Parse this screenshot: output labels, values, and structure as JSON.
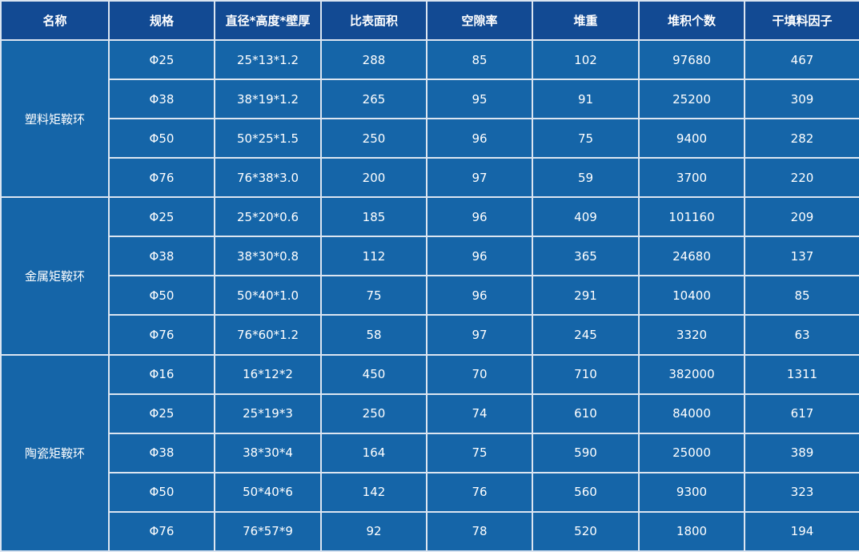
{
  "colors": {
    "header_bg": "#124a93",
    "body_bg": "#1565a8",
    "border": "#dbe5f1",
    "text": "#ffffff"
  },
  "headers": [
    "名称",
    "规格",
    "直径*高度*壁厚",
    "比表面积",
    "空隙率",
    "堆重",
    "堆积个数",
    "干填料因子"
  ],
  "groups": [
    {
      "name": "塑料矩鞍环",
      "rows": [
        [
          "Φ25",
          "25*13*1.2",
          "288",
          "85",
          "102",
          "97680",
          "467"
        ],
        [
          "Φ38",
          "38*19*1.2",
          "265",
          "95",
          "91",
          "25200",
          "309"
        ],
        [
          "Φ50",
          "50*25*1.5",
          "250",
          "96",
          "75",
          "9400",
          "282"
        ],
        [
          "Φ76",
          "76*38*3.0",
          "200",
          "97",
          "59",
          "3700",
          "220"
        ]
      ]
    },
    {
      "name": "金属矩鞍环",
      "rows": [
        [
          "Φ25",
          "25*20*0.6",
          "185",
          "96",
          "409",
          "101160",
          "209"
        ],
        [
          "Φ38",
          "38*30*0.8",
          "112",
          "96",
          "365",
          "24680",
          "137"
        ],
        [
          "Φ50",
          "50*40*1.0",
          "75",
          "96",
          "291",
          "10400",
          "85"
        ],
        [
          "Φ76",
          "76*60*1.2",
          "58",
          "97",
          "245",
          "3320",
          "63"
        ]
      ]
    },
    {
      "name": "陶瓷矩鞍环",
      "rows": [
        [
          "Φ16",
          "16*12*2",
          "450",
          "70",
          "710",
          "382000",
          "1311"
        ],
        [
          "Φ25",
          "25*19*3",
          "250",
          "74",
          "610",
          "84000",
          "617"
        ],
        [
          "Φ38",
          "38*30*4",
          "164",
          "75",
          "590",
          "25000",
          "389"
        ],
        [
          "Φ50",
          "50*40*6",
          "142",
          "76",
          "560",
          "9300",
          "323"
        ],
        [
          "Φ76",
          "76*57*9",
          "92",
          "78",
          "520",
          "1800",
          "194"
        ]
      ]
    }
  ]
}
